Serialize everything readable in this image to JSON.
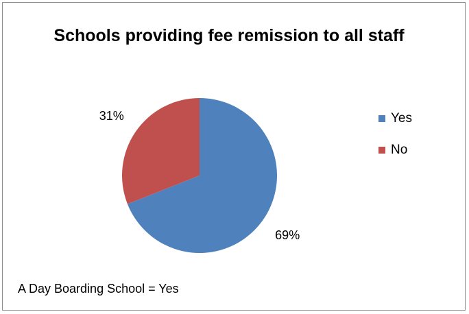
{
  "chart_data": {
    "type": "pie",
    "title": "Schools providing fee remission to all staff",
    "categories": [
      "Yes",
      "No"
    ],
    "values": [
      69,
      31
    ],
    "labels": [
      "69%",
      "31%"
    ],
    "colors": [
      "#4f81bd",
      "#c0504d"
    ],
    "legend_position": "right"
  },
  "annotation": "A Day Boarding School = Yes"
}
